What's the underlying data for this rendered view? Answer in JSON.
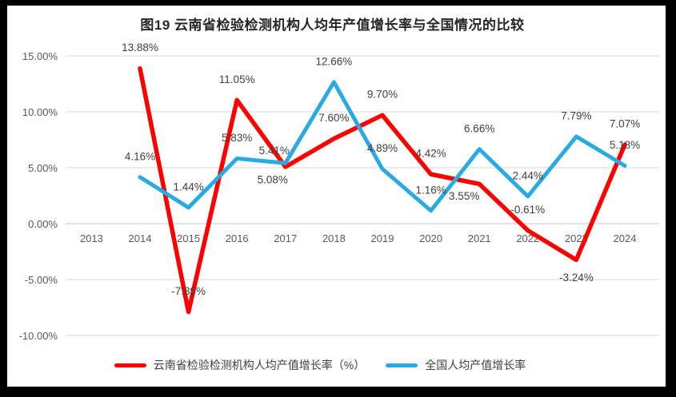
{
  "chart_data": {
    "type": "line",
    "title": "图19  云南省检验检测机构人均年产值增长率与全国情况的比较",
    "categories": [
      "2013",
      "2014",
      "2015",
      "2016",
      "2017",
      "2018",
      "2019",
      "2020",
      "2021",
      "2022",
      "2023",
      "2024"
    ],
    "series": [
      {
        "name": "云南省检验检测机构人均产值增长率（%）",
        "color": "#fe0000",
        "values": [
          null,
          13.88,
          -7.89,
          11.05,
          5.08,
          7.6,
          9.7,
          4.42,
          3.55,
          -0.61,
          -3.24,
          7.07
        ]
      },
      {
        "name": "全国人均产值增长率",
        "color": "#29abe2",
        "values": [
          null,
          4.16,
          1.44,
          5.83,
          5.41,
          12.66,
          4.89,
          1.16,
          6.66,
          2.44,
          7.79,
          5.18
        ]
      }
    ],
    "ylim": [
      -10,
      15
    ],
    "ytick_values": [
      15,
      10,
      5,
      0,
      -5,
      -10
    ],
    "ytick_labels": [
      "15.00%",
      "10.00%",
      "5.00%",
      "0.00%",
      "-5.00%",
      "-10.00%"
    ],
    "grid": true,
    "data_labels": true,
    "legend_position": "bottom",
    "label_offsets": {
      "0": {
        "4": [
          -16,
          16
        ],
        "8": [
          -19,
          15
        ],
        "10": [
          0,
          22
        ]
      },
      "1": {
        "4": [
          -14,
          -16
        ]
      }
    },
    "colors": {
      "gridline": "#d9d9d9",
      "zero_line": "#c6c6c6",
      "axis_text": "#595959",
      "label_text": "#404040",
      "border": "#000000",
      "background": "#ffffff"
    }
  }
}
